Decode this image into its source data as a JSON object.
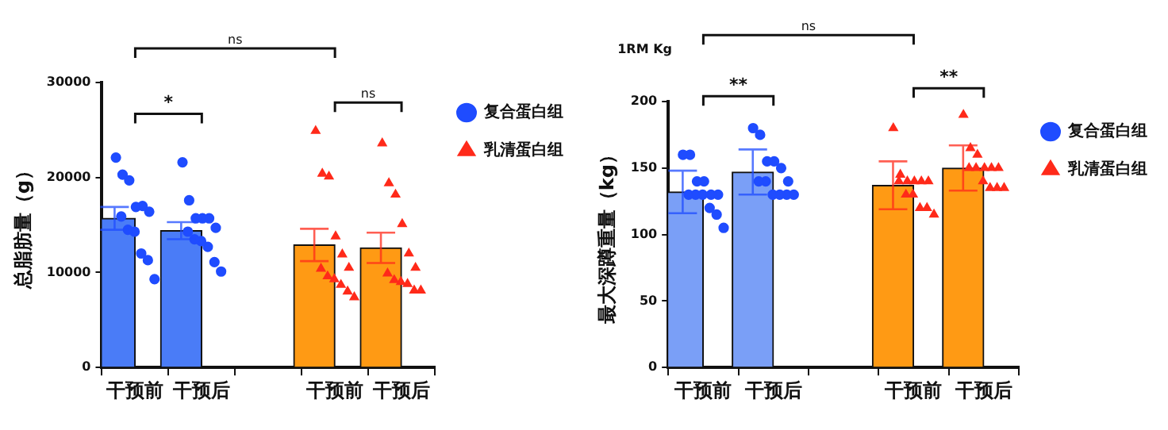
{
  "chart_data": [
    {
      "type": "bar",
      "ylabel": "总脂肪量（g）",
      "categories": [
        "干预前",
        "干预后",
        null,
        "干预前",
        "干预后"
      ],
      "ylim": [
        0,
        30000
      ],
      "yticks": [
        0,
        10000,
        20000,
        30000
      ],
      "grid": false,
      "legend": "top right",
      "annotations": [
        "ns",
        "*",
        "ns"
      ],
      "series": [
        {
          "colors": [
            "#4a7cf7",
            "#4a7cf7",
            null,
            "#ff9a14",
            "#ff9a14"
          ],
          "values": [
            15700,
            14400,
            null,
            12900,
            12600
          ],
          "errors": [
            1200,
            900,
            null,
            1700,
            1600
          ]
        },
        {
          "type": "scatter",
          "name": "复合蛋白组",
          "color": "#1f4cff",
          "marker": "circle",
          "values": [
            22100,
            21600,
            null,
            null,
            null
          ]
        },
        {
          "type": "scatter",
          "color": "#1f4cff",
          "marker": "circle",
          "values": [
            20300,
            17600,
            null,
            null,
            null
          ]
        },
        {
          "type": "scatter",
          "color": "#1f4cff",
          "marker": "circle",
          "values": [
            19700,
            15700,
            null,
            null,
            null
          ]
        },
        {
          "type": "scatter",
          "color": "#1f4cff",
          "marker": "circle",
          "values": [
            16900,
            15700,
            null,
            null,
            null
          ]
        },
        {
          "type": "scatter",
          "color": "#1f4cff",
          "marker": "circle",
          "values": [
            17000,
            15700,
            null,
            null,
            null
          ]
        },
        {
          "type": "scatter",
          "color": "#1f4cff",
          "marker": "circle",
          "values": [
            16400,
            14700,
            null,
            null,
            null
          ]
        },
        {
          "type": "scatter",
          "color": "#1f4cff",
          "marker": "circle",
          "values": [
            15900,
            14300,
            null,
            null,
            null
          ]
        },
        {
          "type": "scatter",
          "color": "#1f4cff",
          "marker": "circle",
          "values": [
            14500,
            13500,
            null,
            null,
            null
          ]
        },
        {
          "type": "scatter",
          "color": "#1f4cff",
          "marker": "circle",
          "values": [
            14300,
            13300,
            null,
            null,
            null
          ]
        },
        {
          "type": "scatter",
          "color": "#1f4cff",
          "marker": "circle",
          "values": [
            12000,
            12700,
            null,
            null,
            null
          ]
        },
        {
          "type": "scatter",
          "color": "#1f4cff",
          "marker": "circle",
          "values": [
            11300,
            11100,
            null,
            null,
            null
          ]
        },
        {
          "type": "scatter",
          "color": "#1f4cff",
          "marker": "circle",
          "values": [
            9300,
            10100,
            null,
            null,
            null
          ]
        },
        {
          "type": "scatter",
          "name": "乳清蛋白组",
          "color": "#ff2a1a",
          "marker": "triangle",
          "values": [
            null,
            null,
            null,
            24900,
            23600
          ]
        },
        {
          "type": "scatter",
          "color": "#ff2a1a",
          "marker": "triangle",
          "values": [
            null,
            null,
            null,
            20400,
            19400
          ]
        },
        {
          "type": "scatter",
          "color": "#ff2a1a",
          "marker": "triangle",
          "values": [
            null,
            null,
            null,
            20100,
            18200
          ]
        },
        {
          "type": "scatter",
          "color": "#ff2a1a",
          "marker": "triangle",
          "values": [
            null,
            null,
            null,
            13800,
            15100
          ]
        },
        {
          "type": "scatter",
          "color": "#ff2a1a",
          "marker": "triangle",
          "values": [
            null,
            null,
            null,
            11900,
            12000
          ]
        },
        {
          "type": "scatter",
          "color": "#ff2a1a",
          "marker": "triangle",
          "values": [
            null,
            null,
            null,
            10500,
            10500
          ]
        },
        {
          "type": "scatter",
          "color": "#ff2a1a",
          "marker": "triangle",
          "values": [
            null,
            null,
            null,
            10400,
            9900
          ]
        },
        {
          "type": "scatter",
          "color": "#ff2a1a",
          "marker": "triangle",
          "values": [
            null,
            null,
            null,
            9600,
            9200
          ]
        },
        {
          "type": "scatter",
          "color": "#ff2a1a",
          "marker": "triangle",
          "values": [
            null,
            null,
            null,
            9300,
            9000
          ]
        },
        {
          "type": "scatter",
          "color": "#ff2a1a",
          "marker": "triangle",
          "values": [
            null,
            null,
            null,
            8700,
            8800
          ]
        },
        {
          "type": "scatter",
          "color": "#ff2a1a",
          "marker": "triangle",
          "values": [
            null,
            null,
            null,
            8000,
            8100
          ]
        },
        {
          "type": "scatter",
          "color": "#ff2a1a",
          "marker": "triangle",
          "values": [
            null,
            null,
            null,
            7400,
            8100
          ]
        }
      ]
    },
    {
      "type": "bar",
      "ylabel": "最大深蹲重量（kg）",
      "categories": [
        "干预前",
        "干预后",
        null,
        "干预前",
        "干预后"
      ],
      "ylim": [
        0,
        200
      ],
      "yticks": [
        0,
        50,
        100,
        150,
        200
      ],
      "grid": false,
      "legend": "top right",
      "annotations": [
        "ns",
        "**",
        "**",
        "1RM Kg"
      ],
      "series": [
        {
          "colors": [
            "#7a9ff7",
            "#7a9ff7",
            null,
            "#ff9a14",
            "#ff9a14"
          ],
          "values": [
            132,
            147,
            null,
            137,
            150
          ],
          "errors": [
            16,
            17,
            null,
            18,
            17
          ]
        },
        {
          "type": "scatter",
          "name": "复合蛋白组",
          "color": "#1f4cff",
          "marker": "circle",
          "values": [
            160,
            180,
            null,
            null,
            null
          ]
        },
        {
          "type": "scatter",
          "color": "#1f4cff",
          "marker": "circle",
          "values": [
            160,
            175,
            null,
            null,
            null
          ]
        },
        {
          "type": "scatter",
          "color": "#1f4cff",
          "marker": "circle",
          "values": [
            140,
            155,
            null,
            null,
            null
          ]
        },
        {
          "type": "scatter",
          "color": "#1f4cff",
          "marker": "circle",
          "values": [
            140,
            155,
            null,
            null,
            null
          ]
        },
        {
          "type": "scatter",
          "color": "#1f4cff",
          "marker": "circle",
          "values": [
            130,
            150,
            null,
            null,
            null
          ]
        },
        {
          "type": "scatter",
          "color": "#1f4cff",
          "marker": "circle",
          "values": [
            130,
            140,
            null,
            null,
            null
          ]
        },
        {
          "type": "scatter",
          "color": "#1f4cff",
          "marker": "circle",
          "values": [
            130,
            140,
            null,
            null,
            null
          ]
        },
        {
          "type": "scatter",
          "color": "#1f4cff",
          "marker": "circle",
          "values": [
            130,
            140,
            null,
            null,
            null
          ]
        },
        {
          "type": "scatter",
          "color": "#1f4cff",
          "marker": "circle",
          "values": [
            130,
            130,
            null,
            null,
            null
          ]
        },
        {
          "type": "scatter",
          "color": "#1f4cff",
          "marker": "circle",
          "values": [
            120,
            130,
            null,
            null,
            null
          ]
        },
        {
          "type": "scatter",
          "color": "#1f4cff",
          "marker": "circle",
          "values": [
            115,
            130,
            null,
            null,
            null
          ]
        },
        {
          "type": "scatter",
          "color": "#1f4cff",
          "marker": "circle",
          "values": [
            105,
            130,
            null,
            null,
            null
          ]
        },
        {
          "type": "scatter",
          "name": "乳清蛋白组",
          "color": "#ff2a1a",
          "marker": "triangle",
          "values": [
            null,
            null,
            null,
            180,
            190
          ]
        },
        {
          "type": "scatter",
          "color": "#ff2a1a",
          "marker": "triangle",
          "values": [
            null,
            null,
            null,
            145,
            165
          ]
        },
        {
          "type": "scatter",
          "color": "#ff2a1a",
          "marker": "triangle",
          "values": [
            null,
            null,
            null,
            140,
            160
          ]
        },
        {
          "type": "scatter",
          "color": "#ff2a1a",
          "marker": "triangle",
          "values": [
            null,
            null,
            null,
            140,
            150
          ]
        },
        {
          "type": "scatter",
          "color": "#ff2a1a",
          "marker": "triangle",
          "values": [
            null,
            null,
            null,
            140,
            150
          ]
        },
        {
          "type": "scatter",
          "color": "#ff2a1a",
          "marker": "triangle",
          "values": [
            null,
            null,
            null,
            140,
            150
          ]
        },
        {
          "type": "scatter",
          "color": "#ff2a1a",
          "marker": "triangle",
          "values": [
            null,
            null,
            null,
            140,
            150
          ]
        },
        {
          "type": "scatter",
          "color": "#ff2a1a",
          "marker": "triangle",
          "values": [
            null,
            null,
            null,
            130,
            150
          ]
        },
        {
          "type": "scatter",
          "color": "#ff2a1a",
          "marker": "triangle",
          "values": [
            null,
            null,
            null,
            130,
            140
          ]
        },
        {
          "type": "scatter",
          "color": "#ff2a1a",
          "marker": "triangle",
          "values": [
            null,
            null,
            null,
            120,
            135
          ]
        },
        {
          "type": "scatter",
          "color": "#ff2a1a",
          "marker": "triangle",
          "values": [
            null,
            null,
            null,
            120,
            135
          ]
        },
        {
          "type": "scatter",
          "color": "#ff2a1a",
          "marker": "triangle",
          "values": [
            null,
            null,
            null,
            115,
            135
          ]
        }
      ]
    }
  ]
}
